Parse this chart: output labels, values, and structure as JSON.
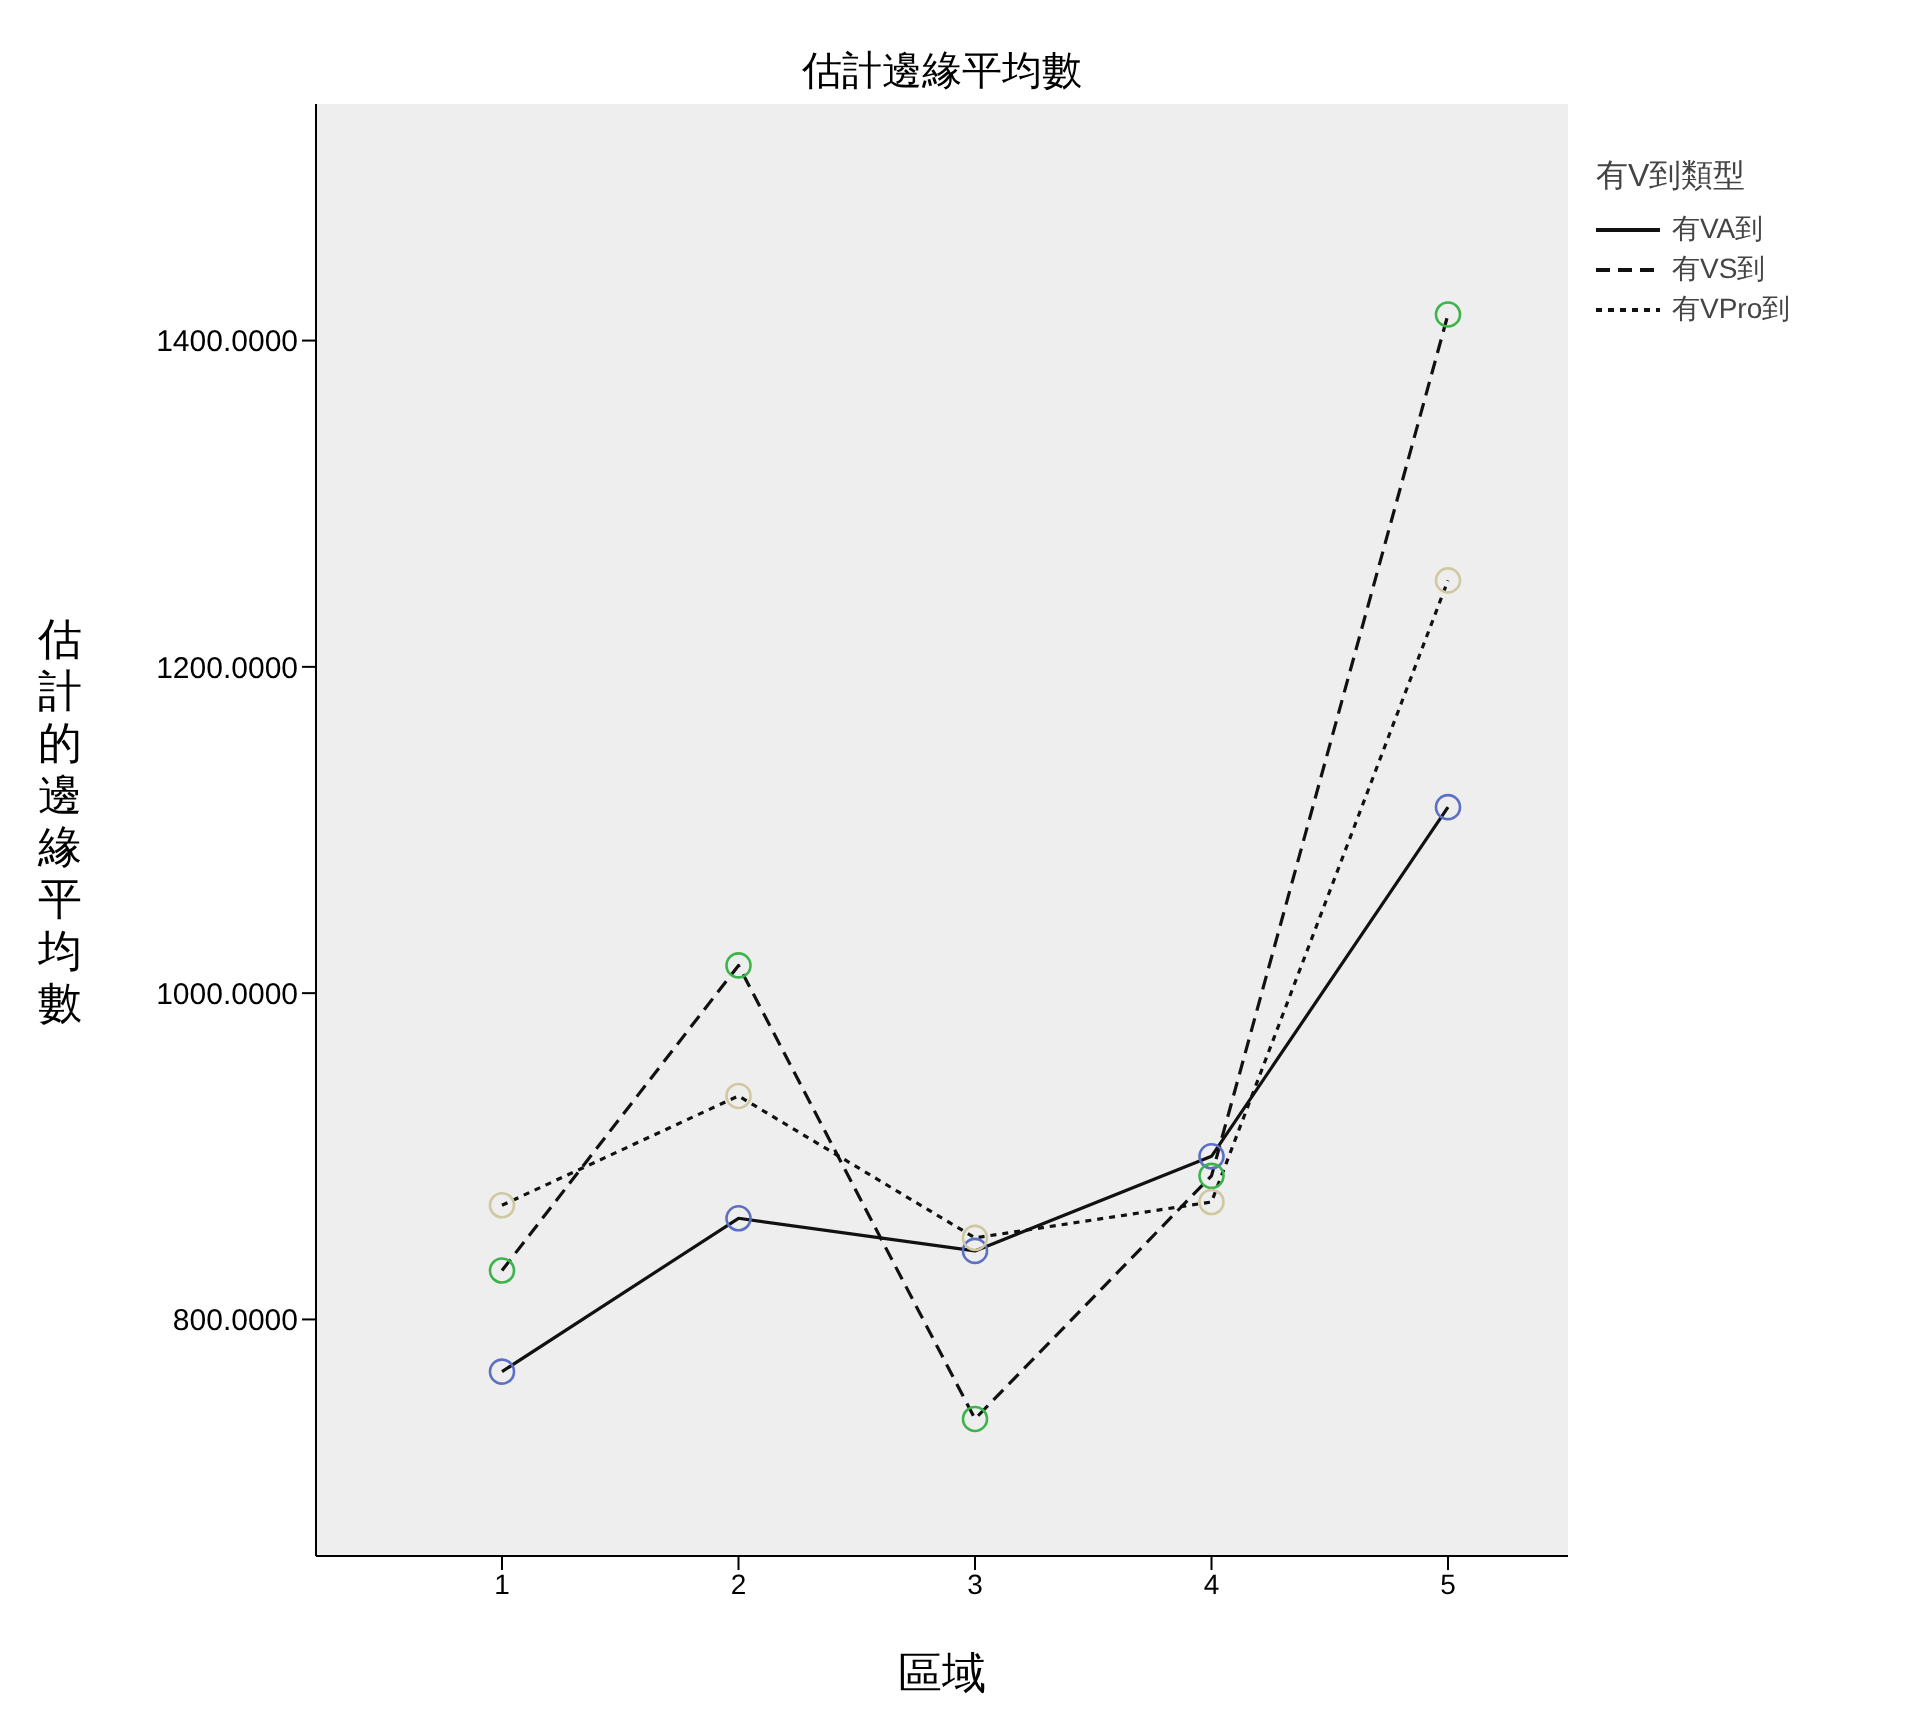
{
  "chart_data": {
    "type": "line",
    "title": "估計邊緣平均數",
    "xlabel": "區域",
    "ylabel": "估計的邊緣平均數",
    "legend_title": "有V到類型",
    "legend": "top right",
    "grid": false,
    "marker": "circle",
    "categories": [
      "1",
      "2",
      "3",
      "4",
      "5"
    ],
    "ylim": [
      655,
      1545
    ],
    "yticks": [
      {
        "value": 800,
        "label": "800.0000"
      },
      {
        "value": 1000,
        "label": "1000.0000"
      },
      {
        "value": 1200,
        "label": "1200.0000"
      },
      {
        "value": 1400,
        "label": "1400.0000"
      }
    ],
    "series": [
      {
        "name": "有VA到",
        "color": "#5b6fc4",
        "line_style": "solid",
        "values": [
          768,
          862,
          842,
          900,
          1114
        ]
      },
      {
        "name": "有VS到",
        "color": "#3cb44b",
        "line_style": "dashed",
        "values": [
          830,
          1017,
          739,
          888,
          1416
        ]
      },
      {
        "name": "有VPro到",
        "color": "#cfc8a0",
        "line_style": "dotted",
        "values": [
          870,
          937,
          850,
          872,
          1253
        ]
      }
    ]
  }
}
